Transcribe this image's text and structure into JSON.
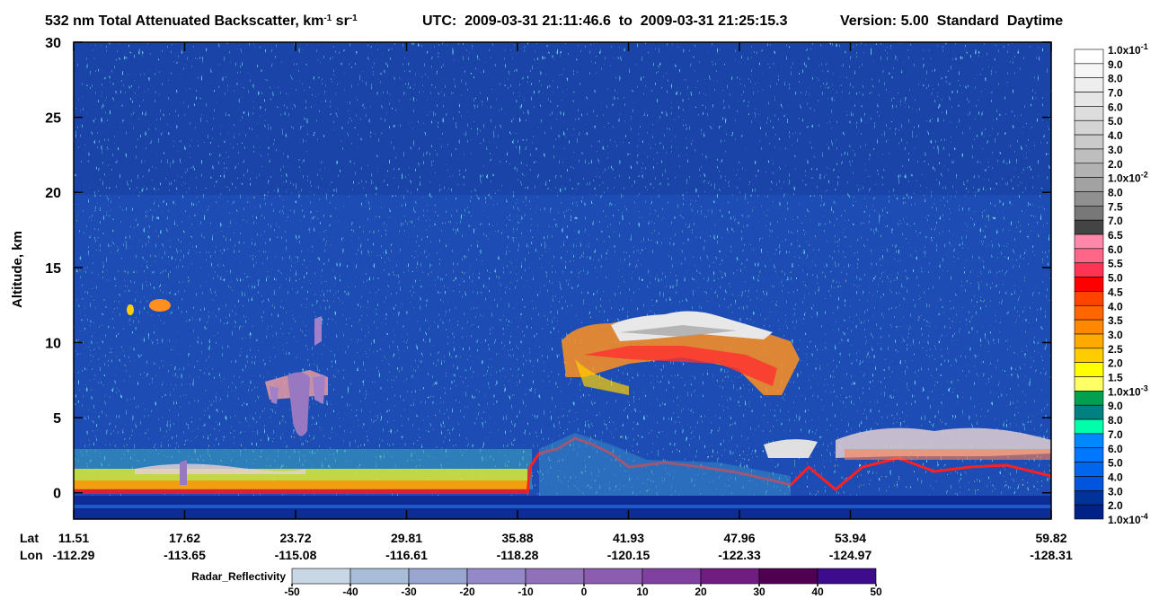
{
  "chart_data": {
    "type": "curtain",
    "title_parts": [
      {
        "text": "532 nm Total Attenuated Backscatter, km"
      },
      {
        "sup": "-1"
      },
      {
        "text": " sr"
      },
      {
        "sup": "-1"
      }
    ],
    "subtitle": "UTC:  2009-03-31 21:11:46.6  to  2009-03-31 21:25:15.3",
    "version": "Version: 5.00  Standard  Daytime",
    "ylabel": "Altitude, km",
    "ylim": [
      -1.75,
      30
    ],
    "yticks": [
      0,
      5,
      10,
      15,
      20,
      25,
      30
    ],
    "lat_label": "Lat",
    "lon_label": "Lon",
    "lat": [
      "11.51",
      "17.62",
      "23.72",
      "29.81",
      "35.88",
      "41.93",
      "47.96",
      "53.94",
      "59.82"
    ],
    "lon": [
      "-112.29",
      "-113.65",
      "-115.08",
      "-116.61",
      "-118.28",
      "-120.15",
      "-122.33",
      "-124.97",
      "-128.31"
    ],
    "backscatter_colorbar": {
      "labels": [
        {
          "text": "1.0x10",
          "sup": "-1"
        },
        "9.0",
        "8.0",
        "7.0",
        "6.0",
        "5.0",
        "4.0",
        "3.0",
        "2.0",
        {
          "text": "1.0x10",
          "sup": "-2"
        },
        "8.0",
        "7.5",
        "7.0",
        "6.5",
        "6.0",
        "5.5",
        "5.0",
        "4.5",
        "4.0",
        "3.5",
        "3.0",
        "2.5",
        "2.0",
        "1.5",
        {
          "text": "1.0x10",
          "sup": "-3"
        },
        "9.0",
        "8.0",
        "7.0",
        "6.0",
        "5.0",
        "4.0",
        "3.0",
        "2.0",
        {
          "text": "1.0x10",
          "sup": "-4"
        }
      ],
      "colors": [
        "#ffffff",
        "#f6f6f6",
        "#eeeeee",
        "#e6e6e6",
        "#dddddd",
        "#d4d4d4",
        "#cacaca",
        "#bebebe",
        "#b2b2b2",
        "#a2a2a2",
        "#909090",
        "#787878",
        "#444444",
        "#ff88aa",
        "#ff6688",
        "#ff3355",
        "#ff0000",
        "#ff4400",
        "#ff6600",
        "#ff8800",
        "#ffaa00",
        "#ffcc00",
        "#ffff00",
        "#ffff66",
        "#00a050",
        "#008080",
        "#00ffaa",
        "#0088ff",
        "#0077ff",
        "#0066ee",
        "#0055dd",
        "#003399",
        "#002288"
      ]
    },
    "radar_colorbar": {
      "label": "Radar_Reflectivity",
      "ticks": [
        -50,
        -40,
        -30,
        -20,
        -10,
        0,
        10,
        20,
        30,
        40,
        50
      ],
      "colors": [
        "#c8d6e6",
        "#a9bcd8",
        "#98a6d0",
        "#9488c8",
        "#9070b8",
        "#8c5cb0",
        "#8040a0",
        "#701c80",
        "#500050",
        "#3c0c8c"
      ]
    }
  }
}
